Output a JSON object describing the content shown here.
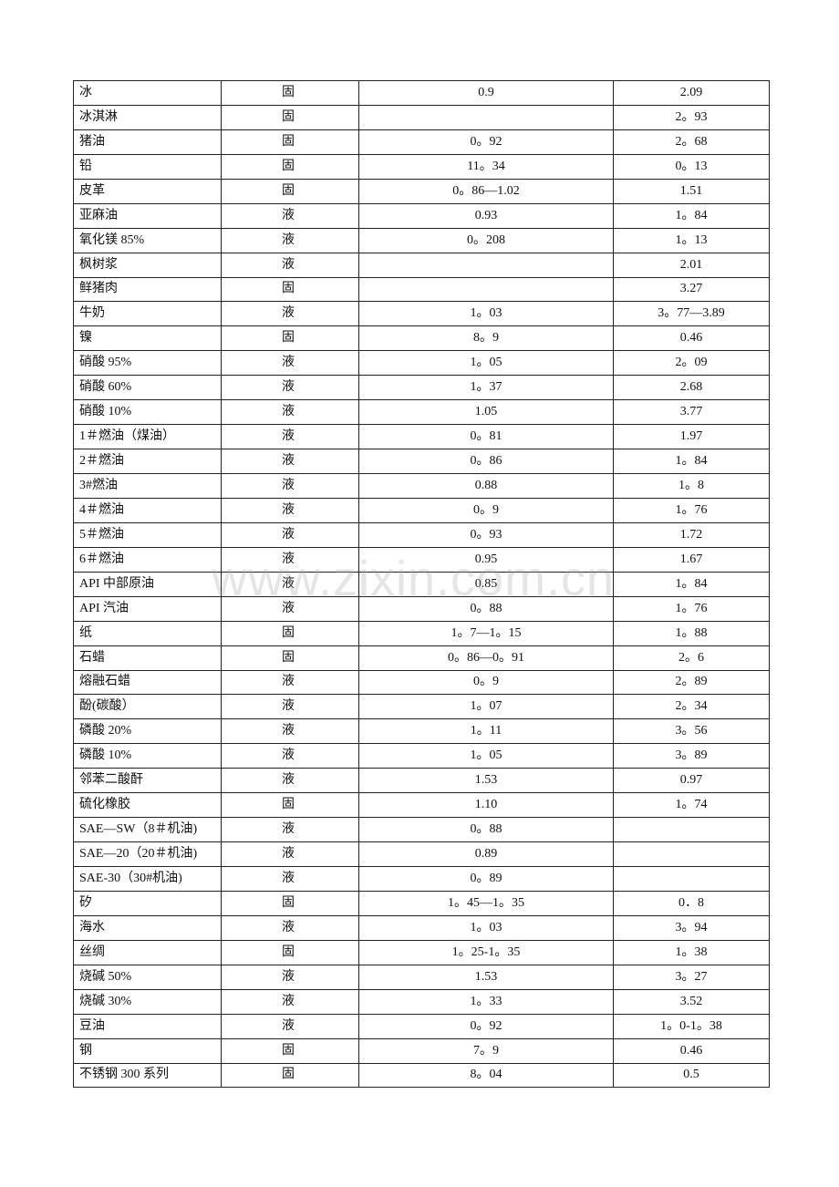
{
  "table": {
    "rows": [
      [
        "冰",
        "固",
        "0.9",
        "2.09"
      ],
      [
        "冰淇淋",
        "固",
        "",
        "2。93"
      ],
      [
        "猪油",
        "固",
        "0。92",
        "2。68"
      ],
      [
        "铅",
        "固",
        "11。34",
        "0。13"
      ],
      [
        "皮革",
        "固",
        "0。86—1.02",
        "1.51"
      ],
      [
        "亚麻油",
        "液",
        "0.93",
        "1。84"
      ],
      [
        "氧化镁 85%",
        "液",
        "0。208",
        "1。13"
      ],
      [
        "枫树浆",
        "液",
        "",
        "2.01"
      ],
      [
        "鲜猪肉",
        "固",
        "",
        "3.27"
      ],
      [
        "牛奶",
        "液",
        "1。03",
        "3。77—3.89"
      ],
      [
        "镍",
        "固",
        "8。9",
        "0.46"
      ],
      [
        "硝酸 95%",
        "液",
        "1。05",
        "2。09"
      ],
      [
        "硝酸 60%",
        "液",
        "1。37",
        "2.68"
      ],
      [
        "硝酸 10%",
        "液",
        "1.05",
        "3.77"
      ],
      [
        "1＃燃油（煤油）",
        "液",
        "0。81",
        "1.97"
      ],
      [
        "2＃燃油",
        "液",
        "0。86",
        "1。84"
      ],
      [
        "3#燃油",
        "液",
        "0.88",
        "1。8"
      ],
      [
        "4＃燃油",
        "液",
        "0。9",
        "1。76"
      ],
      [
        "5＃燃油",
        "液",
        "0。93",
        "1.72"
      ],
      [
        "6＃燃油",
        "液",
        "0.95",
        "1.67"
      ],
      [
        "API 中部原油",
        "液",
        "0.85",
        "1。84"
      ],
      [
        "API 汽油",
        "液",
        "0。88",
        "1。76"
      ],
      [
        "纸",
        "固",
        "1。7—1。15",
        "1。88"
      ],
      [
        "石蜡",
        "固",
        "0。86—0。91",
        "2。6"
      ],
      [
        "熔融石蜡",
        "液",
        "0。9",
        "2。89"
      ],
      [
        "酚(碳酸）",
        "液",
        "1。07",
        "2。34"
      ],
      [
        "磷酸 20%",
        "液",
        "1。11",
        "3。56"
      ],
      [
        "磷酸 10%",
        "液",
        "1。05",
        "3。89"
      ],
      [
        "邻苯二酸酐",
        "液",
        "1.53",
        "0.97"
      ],
      [
        "硫化橡胶",
        "固",
        "1.10",
        "1。74"
      ],
      [
        "SAE—SW（8＃机油)",
        "液",
        "0。88",
        ""
      ],
      [
        "SAE—20（20＃机油)",
        "液",
        "0.89",
        ""
      ],
      [
        "SAE-30（30#机油)",
        "液",
        "0。89",
        ""
      ],
      [
        "矽",
        "固",
        "1。45—1。35",
        "0．8"
      ],
      [
        "海水",
        "液",
        "1。03",
        "3。94"
      ],
      [
        "丝绸",
        "固",
        "1。25-1。35",
        "1。38"
      ],
      [
        "烧碱 50%",
        "液",
        "1.53",
        "3。27"
      ],
      [
        "烧碱 30%",
        "液",
        "1。33",
        "3.52"
      ],
      [
        "豆油",
        "液",
        "0。92",
        "1。0-1。38"
      ],
      [
        "钢",
        "固",
        "7。9",
        "0.46"
      ],
      [
        "不锈钢 300 系列",
        "固",
        "8。04",
        "0.5"
      ]
    ]
  },
  "watermark": "www.zixin.com.cn"
}
